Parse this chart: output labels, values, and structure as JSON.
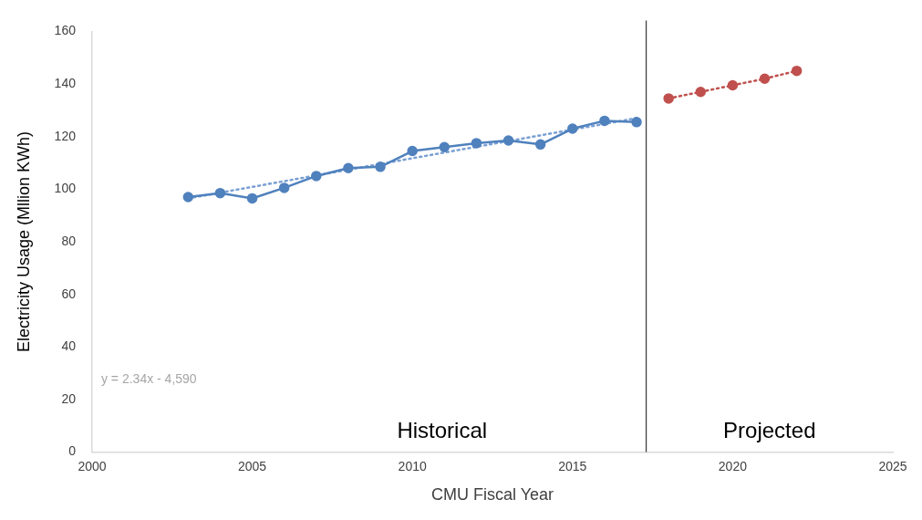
{
  "chart_data": {
    "type": "line",
    "xlabel": "CMU Fiscal Year",
    "ylabel": "Electricity Usage (Mllion KWh)",
    "xlim": [
      2000,
      2025
    ],
    "xticks": [
      2000,
      2005,
      2010,
      2015,
      2020,
      2025
    ],
    "ylim": [
      0,
      160
    ],
    "yticks": [
      0,
      20,
      40,
      60,
      80,
      100,
      120,
      140,
      160
    ],
    "grid": false,
    "legend": false,
    "series": [
      {
        "color": "#4f81bd",
        "marker": "circle",
        "line_style": "solid",
        "x": [
          2003,
          2004,
          2005,
          2006,
          2007,
          2008,
          2009,
          2010,
          2011,
          2012,
          2013,
          2014,
          2015,
          2016,
          2017
        ],
        "values": [
          97,
          98.5,
          96.5,
          100.5,
          105,
          108,
          108.5,
          114.5,
          116,
          117.5,
          118.5,
          117,
          123,
          126,
          125.5
        ]
      },
      {
        "color": "#7aa0d4",
        "marker": "none",
        "line_style": "dotted",
        "x": [
          2003,
          2017
        ],
        "values": [
          96.5,
          127
        ]
      },
      {
        "color": "#c0504d",
        "marker": "circle",
        "line_style": "dotted",
        "x": [
          2018,
          2019,
          2020,
          2021,
          2022
        ],
        "values": [
          134.5,
          137,
          139.5,
          142,
          145
        ]
      }
    ],
    "ref_lines": [
      {
        "axis": "x",
        "value": 2017.3,
        "color": "#404040",
        "line_style": "solid"
      }
    ],
    "annotations": [
      "y = 2.34x - 4,590",
      "Historical",
      "Projected"
    ]
  }
}
